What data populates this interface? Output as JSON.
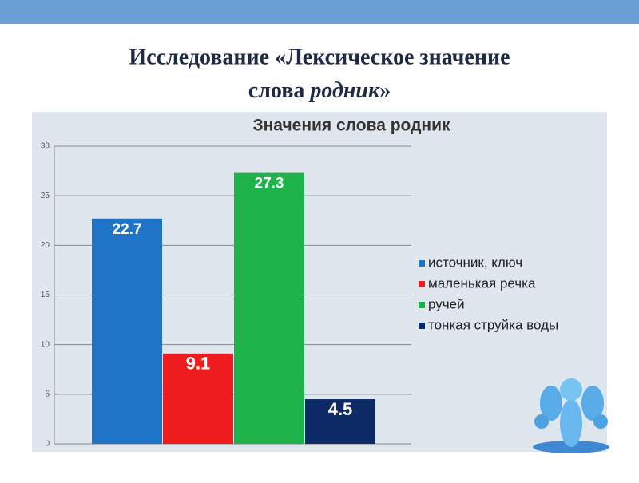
{
  "slide_title": [
    "Исследование «Лексическое значение",
    "слова ",
    "родник",
    "»"
  ],
  "chart_data": {
    "type": "bar",
    "title": "Значения слова родник",
    "categories": [
      null
    ],
    "series": [
      {
        "name": "источник, ключ",
        "color": "#1f74c8",
        "values": [
          22.7
        ]
      },
      {
        "name": "маленькая речка",
        "color": "#ee1c1c",
        "values": [
          9.1
        ]
      },
      {
        "name": "ручей",
        "color": "#1db34a",
        "values": [
          27.3
        ]
      },
      {
        "name": "тонкая струйка воды",
        "color": "#0c2a66",
        "values": [
          4.5
        ]
      }
    ],
    "ylim": [
      0,
      30
    ],
    "yticks": [
      0,
      5,
      10,
      15,
      20,
      25,
      30
    ],
    "grid": true,
    "legend": "right"
  }
}
